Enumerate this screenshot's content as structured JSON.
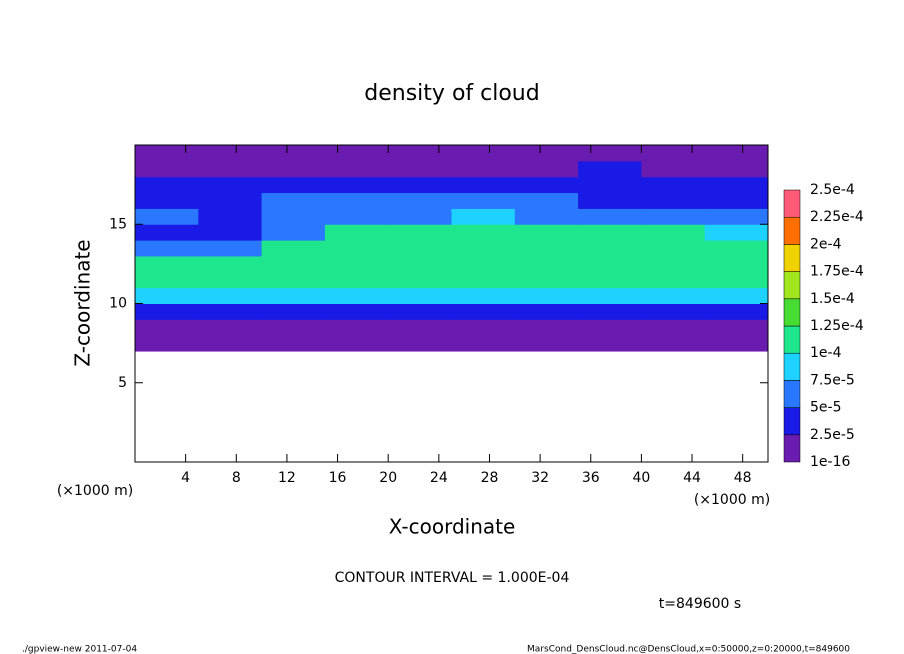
{
  "chart_data": {
    "type": "heatmap",
    "title": "density of cloud",
    "x_label": "X-coordinate",
    "y_label": "Z-coordinate",
    "x_unit": "(×1000 m)",
    "y_unit": "(×1000 m)",
    "contour_label": "CONTOUR INTERVAL = 1.000E-04",
    "time_label": "t=849600 s",
    "footer_left": "./gpview-new  2011-07-04",
    "footer_right": "MarsCond_DensCloud.nc@DensCloud,x=0:50000,z=0:20000,t=849600",
    "xlim": [
      0,
      50
    ],
    "ylim": [
      0,
      20
    ],
    "xticks": [
      4,
      8,
      12,
      16,
      20,
      24,
      28,
      32,
      36,
      40,
      44,
      48
    ],
    "yticks": [
      5,
      10,
      15
    ],
    "x": [
      2.5,
      7.5,
      12.5,
      17.5,
      22.5,
      27.5,
      32.5,
      37.5,
      42.5,
      47.5
    ],
    "y": [
      0.5,
      1.5,
      2.5,
      3.5,
      4.5,
      5.5,
      6.5,
      7.5,
      8.5,
      9.5,
      10.5,
      11.5,
      12.5,
      13.5,
      14.5,
      15.5,
      16.5,
      17.5,
      18.5,
      19.5
    ],
    "z": [
      [
        null,
        null,
        null,
        null,
        null,
        null,
        null,
        null,
        null,
        null
      ],
      [
        null,
        null,
        null,
        null,
        null,
        null,
        null,
        null,
        null,
        null
      ],
      [
        null,
        null,
        null,
        null,
        null,
        null,
        null,
        null,
        null,
        null
      ],
      [
        null,
        null,
        null,
        null,
        null,
        null,
        null,
        null,
        null,
        null
      ],
      [
        null,
        null,
        null,
        null,
        null,
        null,
        null,
        null,
        null,
        null
      ],
      [
        null,
        null,
        null,
        null,
        null,
        null,
        null,
        null,
        null,
        null
      ],
      [
        null,
        null,
        null,
        null,
        null,
        null,
        null,
        null,
        null,
        null
      ],
      [
        5e-06,
        5e-06,
        5e-06,
        5e-06,
        5e-06,
        5e-06,
        5e-06,
        5e-06,
        5e-06,
        5e-06
      ],
      [
        2e-05,
        2e-05,
        2e-05,
        2e-05,
        2e-05,
        2e-05,
        2e-05,
        2e-05,
        2e-05,
        2e-05
      ],
      [
        4e-05,
        4e-05,
        4e-05,
        4e-05,
        4e-05,
        4e-05,
        4e-05,
        4e-05,
        4e-05,
        4e-05
      ],
      [
        8e-05,
        8e-05,
        8e-05,
        8e-05,
        8e-05,
        8e-05,
        8e-05,
        8e-05,
        8e-05,
        8e-05
      ],
      [
        0.00011,
        0.00011,
        0.00011,
        0.00011,
        0.00011,
        0.00011,
        0.00011,
        0.00011,
        0.00011,
        0.00011
      ],
      [
        0.000105,
        0.000105,
        0.00012,
        0.00012,
        0.00012,
        0.00012,
        0.00012,
        0.00012,
        0.00012,
        0.00012
      ],
      [
        7e-05,
        6e-05,
        0.0001,
        0.00011,
        0.00011,
        0.00011,
        0.00011,
        0.00011,
        0.00011,
        0.00011
      ],
      [
        4e-05,
        3e-05,
        6e-05,
        0.0001,
        0.0001,
        0.0001,
        0.0001,
        0.0001,
        0.0001,
        9e-05
      ],
      [
        5e-05,
        4e-05,
        5e-05,
        7e-05,
        7e-05,
        8e-05,
        7e-05,
        6e-05,
        6e-05,
        6e-05
      ],
      [
        4e-05,
        4e-05,
        5e-05,
        5e-05,
        5e-05,
        5e-05,
        5e-05,
        4e-05,
        4e-05,
        4e-05
      ],
      [
        3e-05,
        3e-05,
        3e-05,
        3e-05,
        3e-05,
        3e-05,
        4e-05,
        3e-05,
        3e-05,
        3e-05
      ],
      [
        2e-05,
        2e-05,
        2e-05,
        2e-05,
        2e-05,
        2e-05,
        2e-05,
        3e-05,
        2e-05,
        2e-05
      ],
      [
        1e-05,
        1e-05,
        1e-05,
        1e-05,
        1e-05,
        1e-05,
        1e-05,
        1e-05,
        1e-05,
        1e-05
      ]
    ],
    "levels": [
      {
        "value": 1e-16,
        "label": "1e-16"
      },
      {
        "value": 2.5e-05,
        "label": "2.5e-5"
      },
      {
        "value": 5e-05,
        "label": "5e-5"
      },
      {
        "value": 7.5e-05,
        "label": "7.5e-5"
      },
      {
        "value": 0.0001,
        "label": "1e-4"
      },
      {
        "value": 0.000125,
        "label": "1.25e-4"
      },
      {
        "value": 0.00015,
        "label": "1.5e-4"
      },
      {
        "value": 0.000175,
        "label": "1.75e-4"
      },
      {
        "value": 0.0002,
        "label": "2e-4"
      },
      {
        "value": 0.000225,
        "label": "2.25e-4"
      },
      {
        "value": 0.00025,
        "label": "2.5e-4"
      }
    ],
    "colors": [
      "#6a1cb0",
      "#1a1ae6",
      "#2a78ff",
      "#1ed2ff",
      "#1ee68c",
      "#46dc32",
      "#a0e61e",
      "#f0d200",
      "#ff6e00",
      "#ff5a78"
    ]
  }
}
